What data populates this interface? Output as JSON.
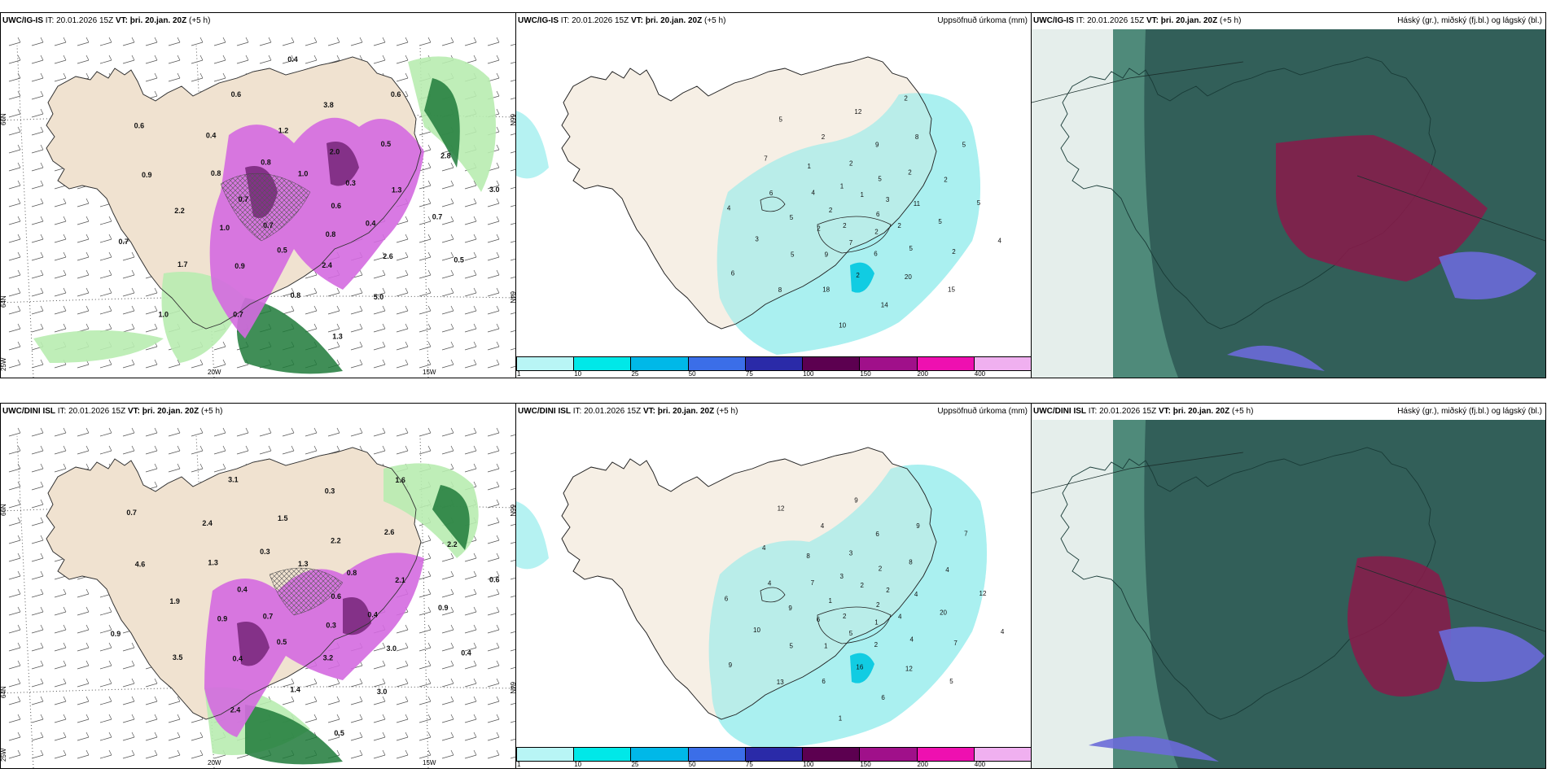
{
  "rows": [
    {
      "model": "UWC/IG-IS",
      "it": "IT: 20.01.2026 15Z",
      "vt_label": "VT:",
      "vt": "þri. 20.jan. 20Z",
      "lead": "(+5 h)",
      "precip_title": "Uppsöfnuð úrkoma (mm)",
      "cloud_title": "Háský (gr.), miðský (fj.bl.) og lágský (bl.)",
      "axis": {
        "lat_top": "66N",
        "lat_mid": "64N",
        "lon_w": "25W",
        "lon_a": "20W",
        "lon_b": "15W"
      },
      "rate_labels": [
        "0.6",
        "0.7",
        "1.0",
        "0.8",
        "0.7",
        "0.3",
        "0.5",
        "0.8",
        "0.4",
        "1.0",
        "2.0",
        "2.4",
        "0.8",
        "1.3",
        "0.9",
        "1.2",
        "2.6",
        "2.2",
        "0.5",
        "0.8",
        "0.4",
        "0.7",
        "1.7",
        "3.8",
        "5.0",
        "0.9",
        "2.8",
        "0.7",
        "0.6",
        "0.5",
        "0.7",
        "0.6",
        "1.3",
        "0.6",
        "3.0",
        "1.0",
        "0.4"
      ],
      "precip_labels": [
        "6",
        "2",
        "1",
        "2",
        "2",
        "3",
        "7",
        "1",
        "2",
        "2",
        "5",
        "6",
        "4",
        "11",
        "9",
        "2",
        "5",
        "5",
        "2",
        "2",
        "1",
        "5",
        "5",
        "9",
        "20",
        "6",
        "2",
        "18",
        "2",
        "2",
        "3",
        "8",
        "14",
        "7",
        "5",
        "8",
        "12",
        "15",
        "4",
        "5",
        "10",
        "5",
        "4",
        "6",
        "2"
      ]
    },
    {
      "model": "UWC/DINI ISL",
      "it": "IT: 20.01.2026 15Z",
      "vt_label": "VT:",
      "vt": "þri. 20.jan. 20Z",
      "lead": "(+5 h)",
      "precip_title": "Uppsöfnuð úrkoma (mm)",
      "cloud_title": "Háský (gr.), miðský (fj.bl.) og lágský (bl.)",
      "axis": {
        "lat_top": "66N",
        "lat_mid": "64N",
        "lon_w": "25W",
        "lon_a": "20W",
        "lon_b": "15W"
      },
      "rate_labels": [
        "0.6",
        "0.7",
        "1.3",
        "0.3",
        "0.4",
        "0.8",
        "0.5",
        "0.3",
        "0.4",
        "0.9",
        "2.2",
        "3.2",
        "1.3",
        "2.1",
        "0.4",
        "1.5",
        "3.0",
        "1.9",
        "2.6",
        "1.4",
        "2.4",
        "0.9",
        "3.5",
        "0.3",
        "3.0",
        "4.6",
        "2.2",
        "2.4",
        "3.1",
        "0.4",
        "0.9",
        "1.6",
        "0.5",
        "0.7",
        "0.6"
      ],
      "precip_labels": [
        "2",
        "2",
        "2",
        "1",
        "1",
        "2",
        "5",
        "3",
        "4",
        "6",
        "2",
        "2",
        "7",
        "4",
        "1",
        "3",
        "4",
        "9",
        "8",
        "16",
        "8",
        "20",
        "5",
        "6",
        "12",
        "4",
        "4",
        "6",
        "4",
        "7",
        "10",
        "9",
        "6",
        "4",
        "12",
        "13",
        "9",
        "5",
        "6",
        "7",
        "1",
        "12",
        "4",
        "9"
      ]
    }
  ],
  "colorbar": {
    "ticks": [
      "1",
      "10",
      "25",
      "50",
      "75",
      "100",
      "150",
      "200",
      "400"
    ],
    "colors": [
      "#b8f5f5",
      "#00e8e8",
      "#00b8e8",
      "#3b6ee8",
      "#2a2aa8",
      "#5c0050",
      "#a0108a",
      "#ee10b0",
      "#f0b0f0"
    ]
  },
  "colors": {
    "land": "#f0e2d0",
    "precip_light": "#a8f0f0",
    "cloud_dark": "#2f5a55",
    "cloud_mid": "#4f8a7a",
    "cloud_low_blue": "#6a6ad8",
    "cloud_high_red": "#8a1a4a"
  }
}
